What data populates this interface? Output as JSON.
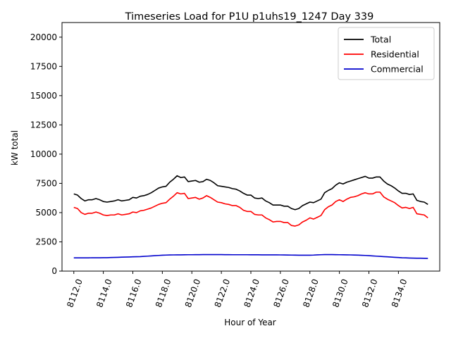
{
  "chart_data": {
    "type": "line",
    "title": "Timeseries Load for P1U p1uhs19_1247  Day 339",
    "xlabel": "Hour of Year",
    "ylabel": "kW total",
    "xlim": [
      8111.2,
      8136.8
    ],
    "ylim": [
      0,
      21250
    ],
    "xticks": [
      8112,
      8114,
      8116,
      8118,
      8120,
      8122,
      8124,
      8126,
      8128,
      8130,
      8132,
      8134
    ],
    "xtick_labels": [
      "8112.0",
      "8114.0",
      "8116.0",
      "8118.0",
      "8120.0",
      "8122.0",
      "8124.0",
      "8126.0",
      "8128.0",
      "8130.0",
      "8132.0",
      "8134.0"
    ],
    "yticks": [
      0,
      2500,
      5000,
      7500,
      10000,
      12500,
      15000,
      17500,
      20000
    ],
    "ytick_labels": [
      "0",
      "2500",
      "5000",
      "7500",
      "10000",
      "12500",
      "15000",
      "17500",
      "20000"
    ],
    "grid": false,
    "legend_position": "top-right",
    "x_start": 8112,
    "x_step": 0.25,
    "series": [
      {
        "name": "Total",
        "color": "#000000",
        "values": [
          6600,
          6500,
          6200,
          6000,
          6100,
          6100,
          6200,
          6100,
          5950,
          5900,
          5950,
          6000,
          6100,
          6000,
          6050,
          6100,
          6300,
          6250,
          6400,
          6450,
          6550,
          6700,
          6900,
          7100,
          7200,
          7250,
          7600,
          7850,
          8150,
          8000,
          8050,
          7650,
          7700,
          7750,
          7600,
          7650,
          7850,
          7750,
          7550,
          7300,
          7250,
          7200,
          7150,
          7050,
          7000,
          6850,
          6650,
          6500,
          6500,
          6250,
          6200,
          6250,
          6000,
          5850,
          5650,
          5650,
          5650,
          5550,
          5550,
          5350,
          5250,
          5350,
          5600,
          5750,
          5900,
          5850,
          6000,
          6150,
          6700,
          6900,
          7050,
          7350,
          7550,
          7450,
          7600,
          7700,
          7800,
          7900,
          8000,
          8100,
          7950,
          7950,
          8050,
          8050,
          7700,
          7450,
          7300,
          7100,
          6850,
          6650,
          6650,
          6550,
          6600,
          6050,
          5950,
          5900,
          5700
        ]
      },
      {
        "name": "Residential",
        "color": "#ff0000",
        "values": [
          5450,
          5350,
          5000,
          4850,
          4950,
          4950,
          5050,
          4950,
          4800,
          4750,
          4800,
          4800,
          4900,
          4800,
          4850,
          4900,
          5050,
          5000,
          5150,
          5200,
          5300,
          5400,
          5550,
          5700,
          5800,
          5850,
          6150,
          6400,
          6700,
          6600,
          6650,
          6200,
          6250,
          6300,
          6150,
          6250,
          6450,
          6300,
          6100,
          5900,
          5850,
          5750,
          5700,
          5600,
          5600,
          5450,
          5200,
          5100,
          5100,
          4850,
          4800,
          4800,
          4550,
          4400,
          4200,
          4250,
          4250,
          4150,
          4150,
          3900,
          3850,
          3950,
          4200,
          4350,
          4550,
          4450,
          4600,
          4750,
          5250,
          5500,
          5650,
          5950,
          6100,
          5950,
          6150,
          6300,
          6350,
          6450,
          6600,
          6700,
          6600,
          6600,
          6750,
          6750,
          6350,
          6150,
          6000,
          5850,
          5600,
          5400,
          5450,
          5350,
          5450,
          4900,
          4850,
          4800,
          4550
        ]
      },
      {
        "name": "Commercial",
        "color": "#0000cd",
        "values": [
          1130,
          1130,
          1130,
          1135,
          1135,
          1140,
          1140,
          1140,
          1145,
          1150,
          1160,
          1170,
          1180,
          1190,
          1200,
          1210,
          1220,
          1230,
          1240,
          1260,
          1280,
          1300,
          1320,
          1340,
          1360,
          1370,
          1380,
          1385,
          1390,
          1390,
          1395,
          1400,
          1400,
          1405,
          1405,
          1410,
          1410,
          1410,
          1410,
          1410,
          1410,
          1405,
          1405,
          1400,
          1400,
          1400,
          1400,
          1400,
          1395,
          1395,
          1395,
          1390,
          1390,
          1390,
          1390,
          1390,
          1385,
          1380,
          1375,
          1370,
          1365,
          1360,
          1360,
          1360,
          1360,
          1370,
          1390,
          1400,
          1410,
          1410,
          1410,
          1405,
          1400,
          1395,
          1390,
          1385,
          1375,
          1365,
          1350,
          1340,
          1320,
          1300,
          1280,
          1260,
          1240,
          1220,
          1200,
          1180,
          1160,
          1140,
          1130,
          1120,
          1110,
          1105,
          1100,
          1095,
          1090
        ]
      }
    ]
  }
}
